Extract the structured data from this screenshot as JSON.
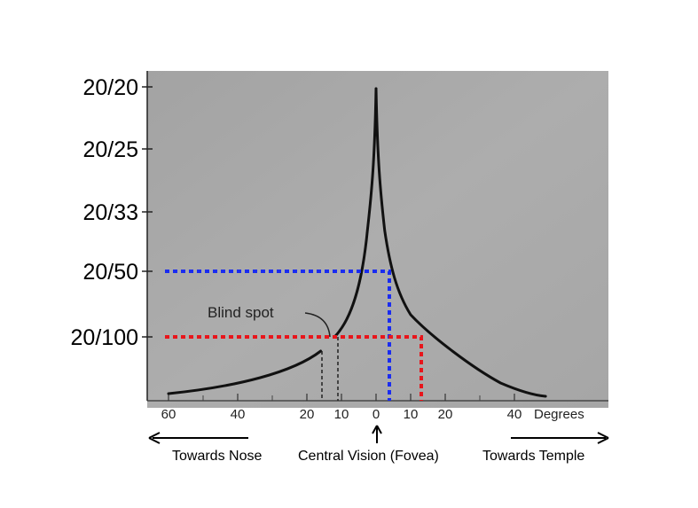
{
  "chart_data": {
    "type": "line",
    "title": "",
    "xlabel": "Degrees",
    "ylabel": "",
    "xlim": [
      -68,
      52
    ],
    "y_ticks": [
      "20/20",
      "20/25",
      "20/33",
      "20/50",
      "20/100"
    ],
    "x_ticks": [
      {
        "label": "60",
        "value": -60
      },
      {
        "label": "40",
        "value": -40
      },
      {
        "label": "20",
        "value": -20
      },
      {
        "label": "10",
        "value": -10
      },
      {
        "label": "0",
        "value": 0
      },
      {
        "label": "10",
        "value": 10
      },
      {
        "label": "20",
        "value": 20
      },
      {
        "label": "40",
        "value": 40
      }
    ],
    "annotation_blind_spot": "Blind spot",
    "blind_spot_range": [
      -16,
      -12
    ],
    "highlight_lines": [
      {
        "acuity": "20/50",
        "degrees": 4,
        "color": "#1a2cf0"
      },
      {
        "acuity": "20/100",
        "degrees": 16,
        "color": "#e8151b"
      }
    ],
    "series": [
      {
        "points": [
          {
            "x": -62,
            "y": "below 20/100"
          },
          {
            "x": -40,
            "y": "below 20/100"
          },
          {
            "x": -16,
            "y": "below 20/100"
          },
          {
            "x": -12,
            "y": "20/100"
          },
          {
            "x": -4,
            "y": "20/50"
          },
          {
            "x": 0,
            "y": "20/20"
          },
          {
            "x": 4,
            "y": "20/50"
          },
          {
            "x": 16,
            "y": "20/100"
          },
          {
            "x": 40,
            "y": "below 20/100"
          },
          {
            "x": 50,
            "y": "below 20/100"
          }
        ]
      }
    ]
  },
  "labels": {
    "towards_nose": "Towards Nose",
    "central_vision": "Central Vision (Fovea)",
    "towards_temple": "Towards Temple"
  },
  "colors": {
    "plot_background": "#a8a8a8",
    "curve": "#111111",
    "blue_line": "#1a2cf0",
    "red_line": "#e8151b"
  }
}
